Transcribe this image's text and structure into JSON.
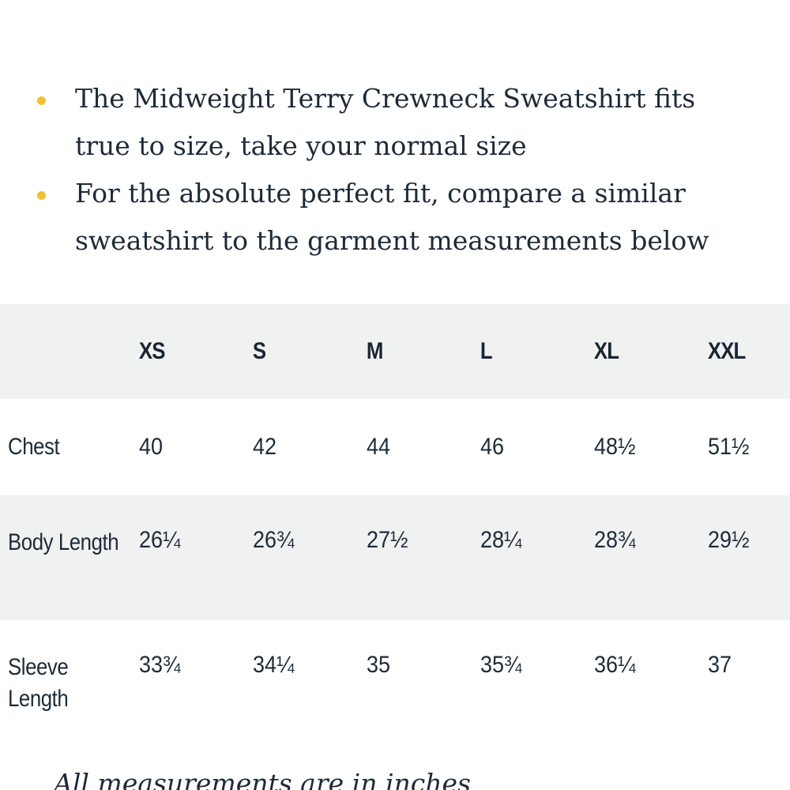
{
  "intro": {
    "bullets": [
      "The Midweight Terry Crewneck Sweatshirt fits true to size, take your normal size",
      "For the absolute perfect fit, compare a similar sweatshirt to the garment measurements below"
    ],
    "bullet_color": "#f1c232"
  },
  "size_table": {
    "sizes": [
      "XS",
      "S",
      "M",
      "L",
      "XL",
      "XXL"
    ],
    "rows": [
      {
        "label": "Chest",
        "values": [
          "40",
          "42",
          "44",
          "46",
          "48½",
          "51½"
        ]
      },
      {
        "label": "Body Length",
        "values": [
          "26¼",
          "26¾",
          "27½",
          "28¼",
          "28¾",
          "29½"
        ]
      },
      {
        "label": "Sleeve Length",
        "values": [
          "33¾",
          "34¼",
          "35",
          "35¾",
          "36¼",
          "37"
        ]
      }
    ],
    "stripe_color": "#f0f1f1"
  },
  "footnote": "All measurements are in inches"
}
